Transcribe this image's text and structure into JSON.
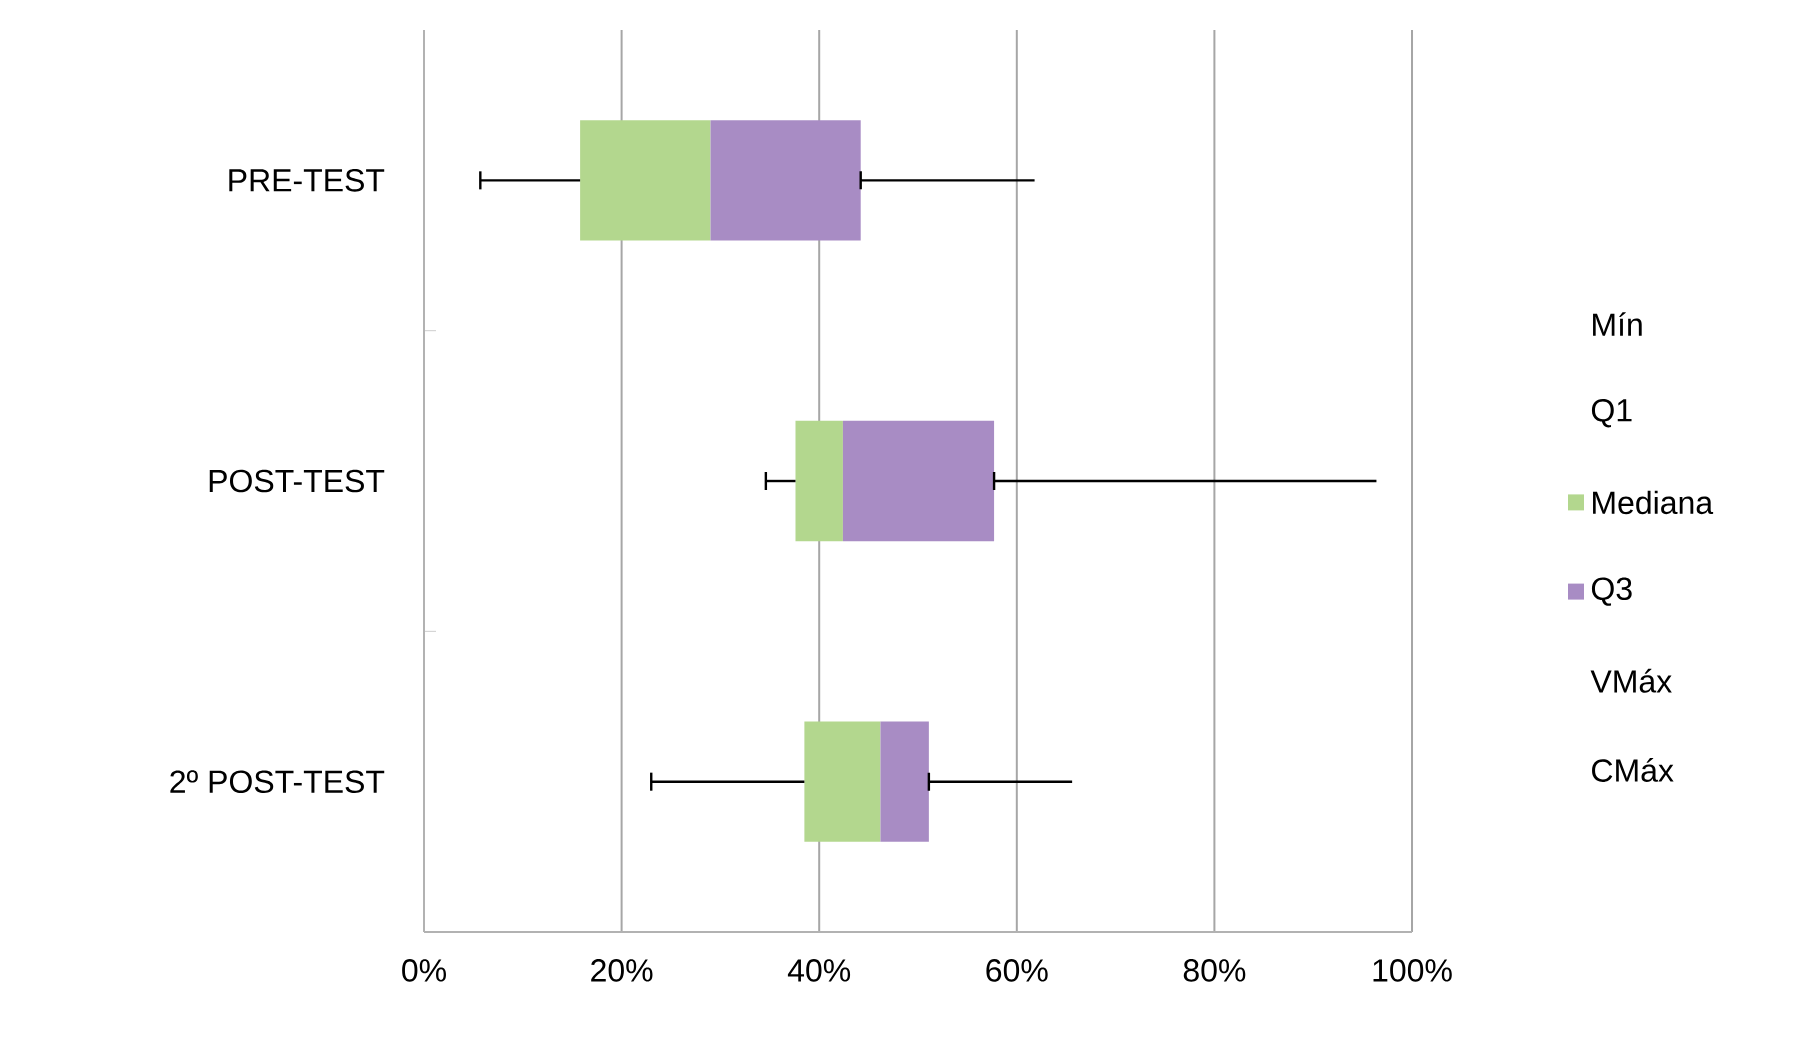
{
  "chart_data": {
    "type": "box",
    "orientation": "horizontal",
    "categories": [
      "PRE-TEST",
      "POST-TEST",
      "2º POST-TEST"
    ],
    "series": [
      {
        "name": "Mín",
        "values": [
          null,
          null,
          null
        ]
      },
      {
        "name": "Q1",
        "values": [
          null,
          null,
          null
        ]
      },
      {
        "name": "Mediana",
        "color": "#b3d78e",
        "boxes": [
          {
            "low": 5.7,
            "q1": 15.8,
            "median": 29.0,
            "q3": 44.2,
            "high": 61.8
          },
          {
            "low": 34.6,
            "q1": 37.6,
            "median": 42.4,
            "q3": 57.7,
            "high": 96.4
          },
          {
            "low": 23.0,
            "q1": 38.5,
            "median": 46.2,
            "q3": 51.1,
            "high": 65.6
          }
        ]
      },
      {
        "name": "Q3",
        "color": "#a88cc4",
        "values": [
          null,
          null,
          null
        ]
      },
      {
        "name": "VMáx",
        "values": [
          null,
          null,
          null
        ]
      },
      {
        "name": "CMáx",
        "values": [
          null,
          null,
          null
        ]
      }
    ],
    "xlim": [
      0,
      100
    ],
    "xticks": [
      {
        "value": 0,
        "label": "0%"
      },
      {
        "value": 20,
        "label": "20%"
      },
      {
        "value": 40,
        "label": "40%"
      },
      {
        "value": 60,
        "label": "60%"
      },
      {
        "value": 80,
        "label": "80%"
      },
      {
        "value": 100,
        "label": "100%"
      }
    ],
    "grid": "x",
    "legend": "right"
  }
}
